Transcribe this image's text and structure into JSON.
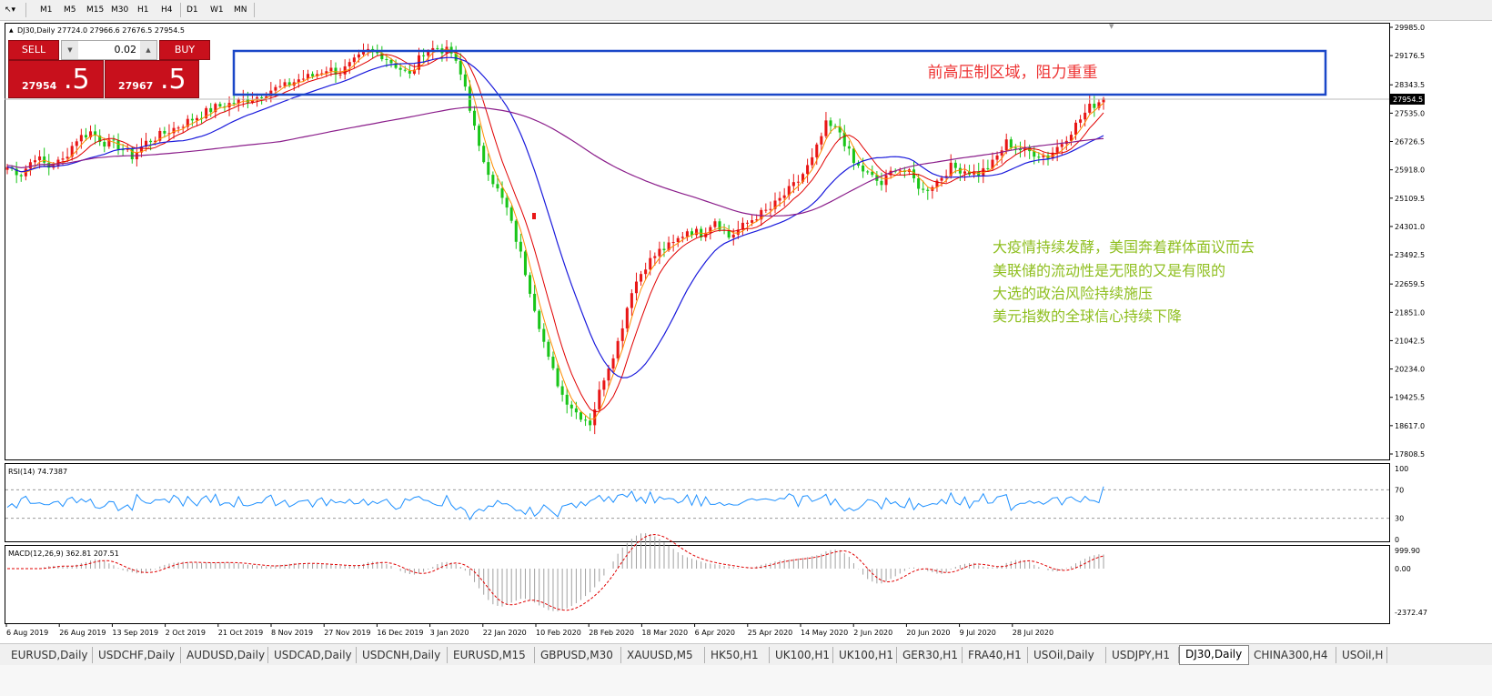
{
  "toolbar": {
    "timeframes": [
      "M1",
      "M5",
      "M15",
      "M30",
      "H1",
      "H4",
      "D1",
      "W1",
      "MN"
    ]
  },
  "trade_panel": {
    "sell_label": "SELL",
    "buy_label": "BUY",
    "lot": "0.02",
    "sell_price_main": "27954",
    "sell_price_big": ".5",
    "buy_price_main": "27967",
    "buy_price_big": ".5"
  },
  "main_chart": {
    "header": "DJ30,Daily  27724.0 27966.6 27676.5 27954.5",
    "current_price_label": "27954.5",
    "resistance_note": "前高压制区域，阻力重重",
    "commentary": [
      "大疫情持续发酵，美国奔着群体面议而去",
      "美联储的流动性是无限的又是有限的",
      "大选的政治风险持续施压",
      "美元指数的全球信心持续下降"
    ]
  },
  "rsi_panel": {
    "header": "RSI(14) 74.7387"
  },
  "macd_panel": {
    "header": "MACD(12,26,9) 362.81 207.51"
  },
  "tabs": [
    "EURUSD,Daily",
    "USDCHF,Daily",
    "AUDUSD,Daily",
    "USDCAD,Daily",
    "USDCNH,Daily",
    "EURUSD,M15",
    "GBPUSD,M30",
    "XAUUSD,M5",
    "HK50,H1",
    "UK100,H1",
    "UK100,H1",
    "GER30,H1",
    "FRA40,H1",
    "USOil,Daily",
    "USDJPY,H1",
    "DJ30,Daily",
    "CHINA300,H4",
    "USOil,H"
  ],
  "active_tab": "DJ30,Daily",
  "colors": {
    "bull": "#e81616",
    "bear": "#19c519",
    "ma_fast": "#ff8c00",
    "ma_mid": "#e00000",
    "ma_slow": "#1a1adc",
    "ma_long": "#8b1e8b",
    "rsi": "#1e90ff",
    "macd_signal": "#e00000",
    "box": "#1a47c8",
    "note_red": "#ee3333",
    "note_green": "#8fbf20"
  },
  "chart_data": [
    {
      "type": "candlestick",
      "title": "",
      "series_name": "DJ30,Daily",
      "ylim": [
        17400,
        30000
      ],
      "y_ticks": [
        29985.0,
        29176.5,
        28343.5,
        27535.0,
        26726.5,
        25918.0,
        25109.5,
        24301.0,
        23492.5,
        22659.5,
        21851.0,
        21042.5,
        20234.0,
        19425.5,
        18617.0,
        17808.5
      ],
      "x_labels": [
        "6 Aug 2019",
        "26 Aug 2019",
        "13 Sep 2019",
        "2 Oct 2019",
        "21 Oct 2019",
        "8 Nov 2019",
        "27 Nov 2019",
        "16 Dec 2019",
        "3 Jan 2020",
        "22 Jan 2020",
        "10 Feb 2020",
        "28 Feb 2020",
        "18 Mar 2020",
        "6 Apr 2020",
        "25 Apr 2020",
        "14 May 2020",
        "2 Jun 2020",
        "20 Jun 2020",
        "9 Jul 2020",
        "28 Jul 2020"
      ],
      "close_path": [
        26000,
        25800,
        26300,
        26000,
        26200,
        26800,
        27000,
        26700,
        26600,
        26300,
        26700,
        26900,
        27100,
        27300,
        27500,
        27700,
        27800,
        27900,
        28000,
        28200,
        28300,
        28500,
        28600,
        28800,
        28700,
        29000,
        29300,
        29200,
        28900,
        28600,
        29300,
        29400,
        29250,
        28300,
        26500,
        25600,
        24800,
        23500,
        22000,
        20500,
        19500,
        19000,
        18700,
        20000,
        21000,
        22500,
        23200,
        23600,
        23800,
        24200,
        24100,
        24500,
        24000,
        24300,
        24600,
        24800,
        25200,
        25600,
        26200,
        27200,
        27000,
        26100,
        25800,
        25500,
        26000,
        25800,
        25300,
        25600,
        26000,
        25900,
        25800,
        26100,
        26700,
        26500,
        26400,
        26300,
        26700,
        27200,
        27700,
        27954.5
      ]
    },
    {
      "type": "line",
      "series_name": "RSI(14)",
      "ylim": [
        0,
        100
      ],
      "y_ticks": [
        100,
        70,
        30,
        0
      ],
      "last_value": 74.7387
    },
    {
      "type": "bar",
      "series_name": "MACD(12,26,9)",
      "y_ticks": [
        999.9,
        0.0,
        -2372.47
      ],
      "last_values": [
        362.81,
        207.51
      ]
    }
  ]
}
